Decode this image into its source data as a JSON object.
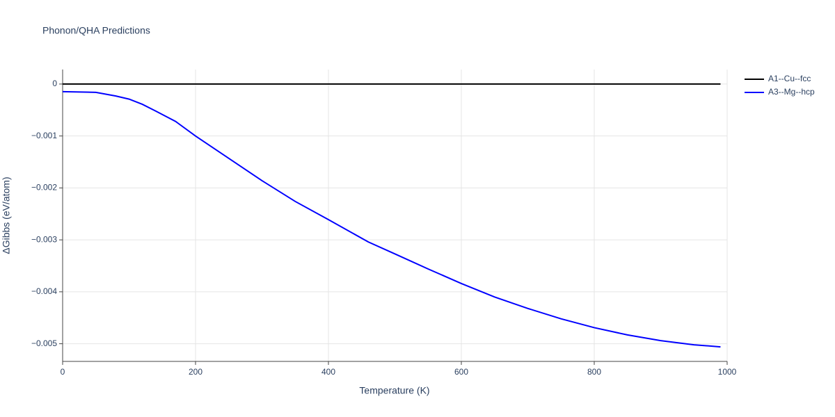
{
  "chart_data": {
    "type": "line",
    "title": "Phonon/QHA Predictions",
    "x_label": "Temperature (K)",
    "y_label": "ΔGibbs (eV/atom)",
    "x": [
      0,
      50,
      80,
      100,
      120,
      140,
      170,
      200,
      250,
      300,
      350,
      400,
      460,
      500,
      550,
      600,
      650,
      700,
      750,
      800,
      850,
      900,
      950,
      990
    ],
    "series": [
      {
        "name": "A1--Cu--fcc",
        "color": "#000000",
        "values": [
          0,
          0,
          0,
          0,
          0,
          0,
          0,
          0,
          0,
          0,
          0,
          0,
          0,
          0,
          0,
          0,
          0,
          0,
          0,
          0,
          0,
          0,
          0,
          0
        ]
      },
      {
        "name": "A3--Mg--hcp",
        "color": "#0000ff",
        "values": [
          -0.000147,
          -0.00016,
          -0.00023,
          -0.00029,
          -0.00039,
          -0.00052,
          -0.00072,
          -0.001,
          -0.00143,
          -0.00186,
          -0.00226,
          -0.00261,
          -0.00304,
          -0.00327,
          -0.00356,
          -0.00384,
          -0.0041,
          -0.00432,
          -0.00452,
          -0.00469,
          -0.00483,
          -0.00494,
          -0.00502,
          -0.00506
        ]
      }
    ],
    "xlim": [
      0,
      1000
    ],
    "xticks": [
      0,
      200,
      400,
      600,
      800,
      1000
    ],
    "ylim": [
      -0.00534,
      0.00028
    ],
    "yticks": [
      0,
      {
        "value": -0.001,
        "label": "−0.001"
      },
      {
        "value": -0.002,
        "label": "−0.002"
      },
      {
        "value": -0.003,
        "label": "−0.003"
      },
      {
        "value": -0.004,
        "label": "−0.004"
      },
      {
        "value": -0.005,
        "label": "−0.005"
      }
    ],
    "grid": true,
    "legend": "outside-right"
  }
}
